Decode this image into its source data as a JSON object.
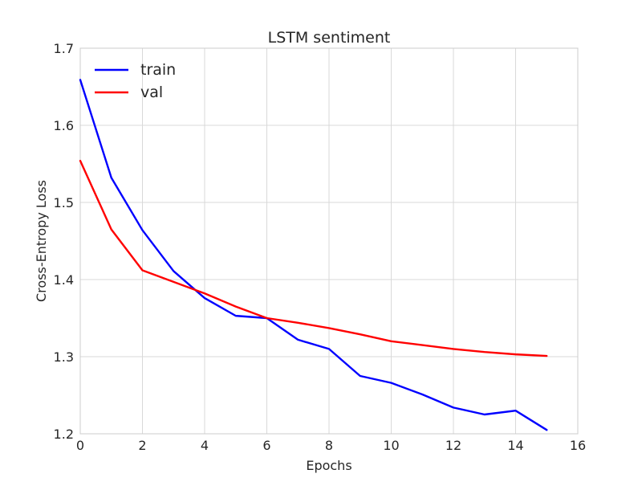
{
  "chart_data": {
    "type": "line",
    "title": "LSTM sentiment",
    "xlabel": "Epochs",
    "ylabel": "Cross-Entropy Loss",
    "xlim": [
      0,
      16
    ],
    "ylim": [
      1.2,
      1.7
    ],
    "xticks": [
      0,
      2,
      4,
      6,
      8,
      10,
      12,
      14,
      16
    ],
    "yticks": [
      1.2,
      1.3,
      1.4,
      1.5,
      1.6,
      1.7
    ],
    "xtick_labels": [
      "0",
      "2",
      "4",
      "6",
      "8",
      "10",
      "12",
      "14",
      "16"
    ],
    "ytick_labels": [
      "1.2",
      "1.3",
      "1.4",
      "1.5",
      "1.6",
      "1.7"
    ],
    "grid": true,
    "legend_position": "top-left",
    "x": [
      0,
      1,
      2,
      3,
      4,
      5,
      6,
      7,
      8,
      9,
      10,
      11,
      12,
      13,
      14,
      15
    ],
    "series": [
      {
        "name": "train",
        "color": "#0000ff",
        "values": [
          1.659,
          1.532,
          1.464,
          1.411,
          1.376,
          1.353,
          1.35,
          1.322,
          1.31,
          1.275,
          1.266,
          1.251,
          1.234,
          1.225,
          1.23,
          1.205
        ]
      },
      {
        "name": "val",
        "color": "#ff0000",
        "values": [
          1.554,
          1.465,
          1.412,
          1.397,
          1.382,
          1.365,
          1.35,
          1.344,
          1.337,
          1.329,
          1.32,
          1.315,
          1.31,
          1.306,
          1.303,
          1.301
        ]
      }
    ]
  }
}
